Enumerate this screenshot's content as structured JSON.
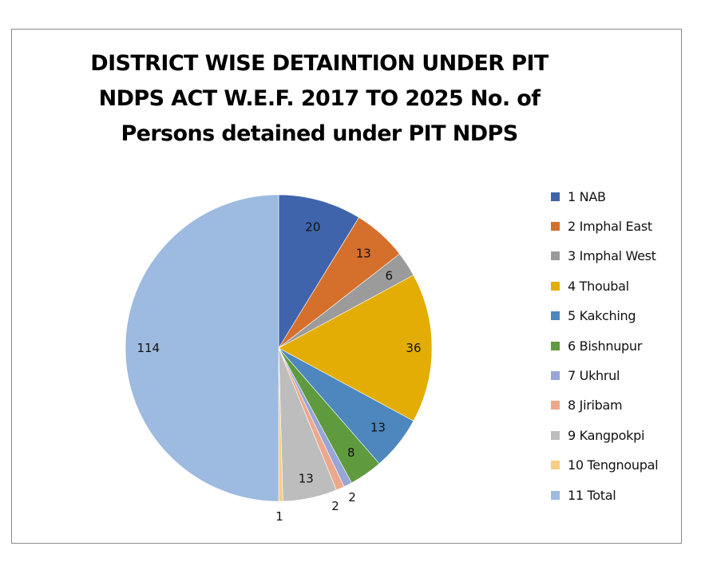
{
  "chart_data": {
    "type": "pie",
    "title_lines": [
      "DISTRICT WISE DETAINTION UNDER PIT",
      "NDPS ACT W.E.F. 2017 TO 2025 No. of",
      "Persons detained under PIT NDPS"
    ],
    "legend_position": "right",
    "start_angle_deg": 0,
    "direction": "clockwise",
    "slices": [
      {
        "label": "1 NAB",
        "value": 20,
        "value_label": "20",
        "color": "#4064ab"
      },
      {
        "label": "2 Imphal East",
        "value": 13,
        "value_label": "13",
        "color": "#d56f2c"
      },
      {
        "label": "3 Imphal West",
        "value": 6,
        "value_label": "6",
        "color": "#9b9b9b"
      },
      {
        "label": "4 Thoubal",
        "value": 36,
        "value_label": "36",
        "color": "#e3ad05"
      },
      {
        "label": "5 Kakching",
        "value": 13,
        "value_label": "13",
        "color": "#4d87be"
      },
      {
        "label": "6 Bishnupur",
        "value": 8,
        "value_label": "8",
        "color": "#5f9a3f"
      },
      {
        "label": "7 Ukhrul",
        "value": 2,
        "value_label": "2",
        "color": "#96a6d6"
      },
      {
        "label": "8 Jiribam",
        "value": 2,
        "value_label": "2",
        "color": "#eda88c"
      },
      {
        "label": "9 Kangpokpi",
        "value": 13,
        "value_label": "13",
        "color": "#bdbdbd"
      },
      {
        "label": "10 Tengnoupal",
        "value": 1,
        "value_label": "1",
        "color": "#f6cf83"
      },
      {
        "label": "11 Total",
        "value": 114,
        "value_label": "114",
        "color": "#9dbae0"
      }
    ]
  }
}
